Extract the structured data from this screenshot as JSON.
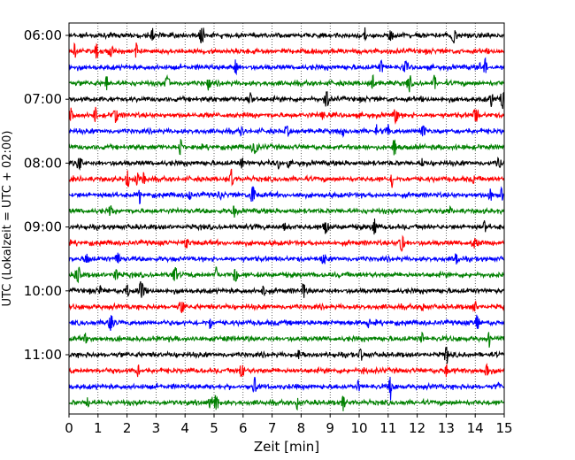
{
  "chart_data": {
    "type": "line",
    "xlabel": "Zeit  [min]",
    "ylabel": "UTC (Lokalzeit = UTC + 02:00)",
    "xlim": [
      0,
      15
    ],
    "x_ticks": [
      0,
      1,
      2,
      3,
      4,
      5,
      6,
      7,
      8,
      9,
      10,
      11,
      12,
      13,
      14,
      15
    ],
    "grid": "vertical dotted",
    "y_tick_labels": [
      "06:00",
      "07:00",
      "08:00",
      "09:00",
      "10:00",
      "11:00"
    ],
    "trace_colors": [
      "#000000",
      "#ff0000",
      "#0000ff",
      "#008000"
    ],
    "traces": [
      {
        "start": "06:00",
        "color": "#000000"
      },
      {
        "start": "06:15",
        "color": "#ff0000"
      },
      {
        "start": "06:30",
        "color": "#0000ff"
      },
      {
        "start": "06:45",
        "color": "#008000"
      },
      {
        "start": "07:00",
        "color": "#000000"
      },
      {
        "start": "07:15",
        "color": "#ff0000"
      },
      {
        "start": "07:30",
        "color": "#0000ff"
      },
      {
        "start": "07:45",
        "color": "#008000"
      },
      {
        "start": "08:00",
        "color": "#000000"
      },
      {
        "start": "08:15",
        "color": "#ff0000"
      },
      {
        "start": "08:30",
        "color": "#0000ff"
      },
      {
        "start": "08:45",
        "color": "#008000"
      },
      {
        "start": "09:00",
        "color": "#000000"
      },
      {
        "start": "09:15",
        "color": "#ff0000"
      },
      {
        "start": "09:30",
        "color": "#0000ff"
      },
      {
        "start": "09:45",
        "color": "#008000"
      },
      {
        "start": "10:00",
        "color": "#000000"
      },
      {
        "start": "10:15",
        "color": "#ff0000"
      },
      {
        "start": "10:30",
        "color": "#0000ff"
      },
      {
        "start": "10:45",
        "color": "#008000"
      },
      {
        "start": "11:00",
        "color": "#000000"
      },
      {
        "start": "11:15",
        "color": "#ff0000"
      },
      {
        "start": "11:30",
        "color": "#0000ff"
      },
      {
        "start": "11:45",
        "color": "#008000"
      }
    ]
  }
}
